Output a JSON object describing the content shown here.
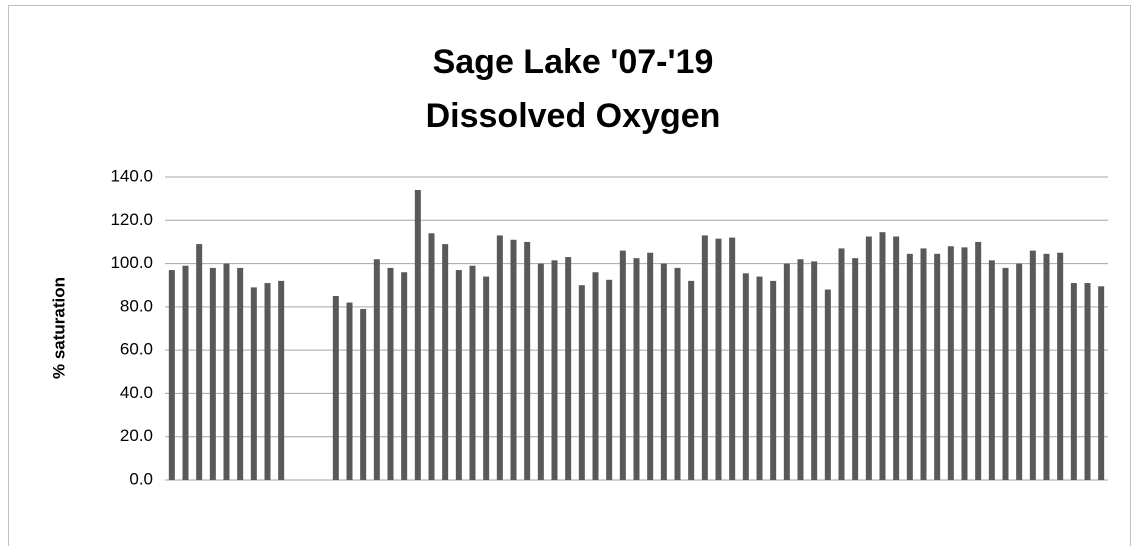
{
  "chart_data": {
    "type": "bar",
    "title": [
      "Sage Lake '07-'19",
      "Dissolved Oxygen"
    ],
    "y_label": "% saturation",
    "categories": [
      null,
      null,
      null,
      null,
      null,
      null,
      null,
      null,
      null,
      null,
      null,
      null,
      null,
      null,
      null,
      null,
      null,
      null,
      null,
      null,
      null,
      null,
      null,
      null,
      null,
      null,
      null,
      null,
      null,
      null,
      null,
      null,
      null,
      null,
      null,
      null,
      null,
      null,
      null,
      null,
      null,
      null,
      null,
      null,
      null,
      null,
      null,
      null,
      null,
      null,
      null,
      null,
      null,
      null,
      null,
      null,
      null,
      null,
      null,
      null,
      null,
      null,
      null,
      null,
      null,
      null,
      null,
      null,
      null
    ],
    "values": [
      97,
      99,
      109,
      98,
      100,
      98,
      89,
      91,
      92,
      null,
      null,
      null,
      85,
      82,
      79,
      102,
      98,
      96,
      134,
      114,
      109,
      97,
      99,
      94,
      113,
      111,
      110,
      100,
      101.5,
      103,
      90,
      96,
      92.5,
      106,
      102.5,
      105,
      100,
      98,
      92,
      113,
      111.5,
      112,
      95.5,
      94,
      92,
      100,
      102,
      101,
      88,
      107,
      102.5,
      112.5,
      114.5,
      112.5,
      104.5,
      107,
      104.5,
      108,
      107.5,
      110,
      101.5,
      98,
      100,
      106,
      104.5,
      105,
      91,
      91,
      89.5
    ],
    "color": "#595959",
    "ylim": [
      0,
      140
    ],
    "yticks": [
      {
        "value": 0,
        "label": "0.0"
      },
      {
        "value": 20,
        "label": "20.0"
      },
      {
        "value": 40,
        "label": "40.0"
      },
      {
        "value": 60,
        "label": "60.0"
      },
      {
        "value": 80,
        "label": "80.0"
      },
      {
        "value": 100,
        "label": "100.0"
      },
      {
        "value": 120,
        "label": "120.0"
      },
      {
        "value": 140,
        "label": "140.0"
      }
    ],
    "grid": true
  }
}
